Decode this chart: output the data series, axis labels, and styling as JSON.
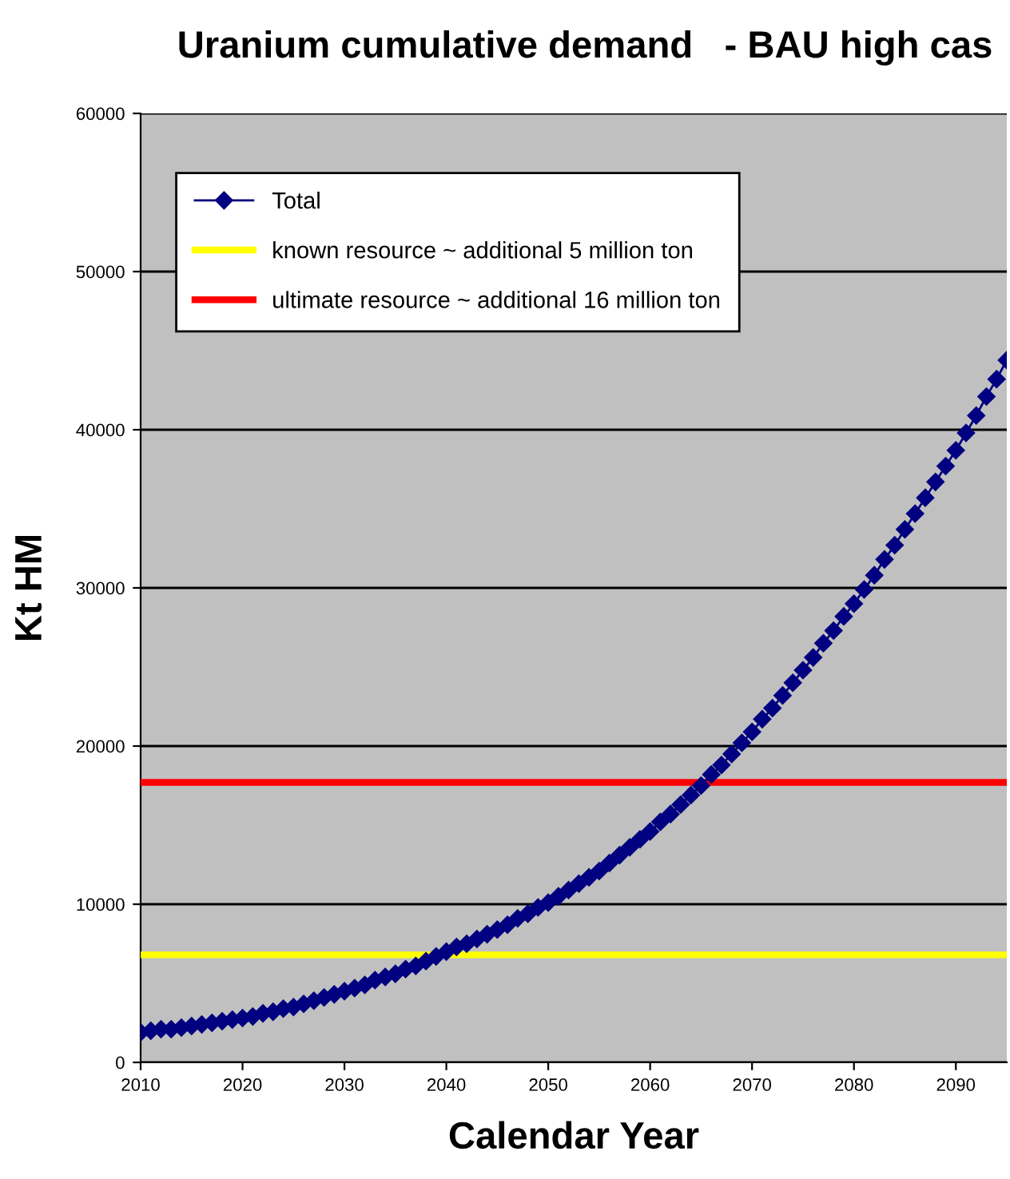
{
  "chart_data": {
    "type": "line",
    "title": "Uranium cumulative demand   - BAU high cas",
    "xlabel": "Calendar Year",
    "ylabel": "Kt HM",
    "x": [
      2010,
      2011,
      2012,
      2013,
      2014,
      2015,
      2016,
      2017,
      2018,
      2019,
      2020,
      2021,
      2022,
      2023,
      2024,
      2025,
      2026,
      2027,
      2028,
      2029,
      2030,
      2031,
      2032,
      2033,
      2034,
      2035,
      2036,
      2037,
      2038,
      2039,
      2040,
      2041,
      2042,
      2043,
      2044,
      2045,
      2046,
      2047,
      2048,
      2049,
      2050,
      2051,
      2052,
      2053,
      2054,
      2055,
      2056,
      2057,
      2058,
      2059,
      2060,
      2061,
      2062,
      2063,
      2064,
      2065,
      2066,
      2067,
      2068,
      2069,
      2070,
      2071,
      2072,
      2073,
      2074,
      2075,
      2076,
      2077,
      2078,
      2079,
      2080,
      2081,
      2082,
      2083,
      2084,
      2085,
      2086,
      2087,
      2088,
      2089,
      2090,
      2091,
      2092,
      2093,
      2094,
      2095
    ],
    "series": [
      {
        "name": "Total",
        "color": "#000080",
        "values": [
          1900,
          2000,
          2100,
          2100,
          2200,
          2300,
          2400,
          2500,
          2600,
          2700,
          2800,
          2900,
          3100,
          3200,
          3400,
          3500,
          3700,
          3900,
          4100,
          4300,
          4500,
          4700,
          4900,
          5200,
          5400,
          5600,
          5900,
          6100,
          6400,
          6700,
          7000,
          7300,
          7500,
          7800,
          8100,
          8400,
          8700,
          9100,
          9400,
          9800,
          10100,
          10500,
          10900,
          11300,
          11700,
          12100,
          12600,
          13100,
          13600,
          14100,
          14600,
          15200,
          15700,
          16300,
          16900,
          17500,
          18200,
          18800,
          19500,
          20200,
          20900,
          21700,
          22400,
          23200,
          24000,
          24800,
          25600,
          26500,
          27300,
          28200,
          29000,
          29900,
          30800,
          31800,
          32700,
          33700,
          34700,
          35700,
          36700,
          37700,
          38700,
          39800,
          40900,
          42100,
          43200,
          44400
        ]
      }
    ],
    "ref_lines": [
      {
        "axis": "y",
        "value": 6800,
        "label": "known resource ~ additional 5 million ton",
        "color": "#ffff00"
      },
      {
        "axis": "y",
        "value": 17700,
        "label": "ultimate resource ~ additional 16 million ton",
        "color": "#ff0000"
      }
    ],
    "xlim": [
      2010,
      2095
    ],
    "xticks": [
      2010,
      2020,
      2030,
      2040,
      2050,
      2060,
      2070,
      2080,
      2090
    ],
    "ylim": [
      0,
      60000
    ],
    "yticks": [
      0,
      10000,
      20000,
      30000,
      40000,
      50000,
      60000
    ],
    "grid": "y",
    "legend": "top left",
    "marker": "diamond",
    "line_style": "solid"
  }
}
